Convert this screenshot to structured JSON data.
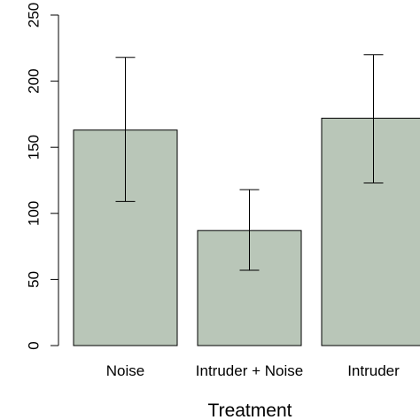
{
  "chart_data": {
    "type": "bar",
    "categories": [
      "Noise",
      "Intruder + Noise",
      "Intruder"
    ],
    "values": [
      163,
      87,
      172
    ],
    "error_low": [
      109,
      57,
      123
    ],
    "error_high": [
      218,
      118,
      220
    ],
    "xlabel": "Treatment",
    "ylabel": "",
    "ylim": [
      0,
      250
    ],
    "yticks": [
      0,
      50,
      100,
      150,
      200,
      250
    ],
    "bar_color": "#b9c6b8",
    "grid": false,
    "legend": "none"
  }
}
